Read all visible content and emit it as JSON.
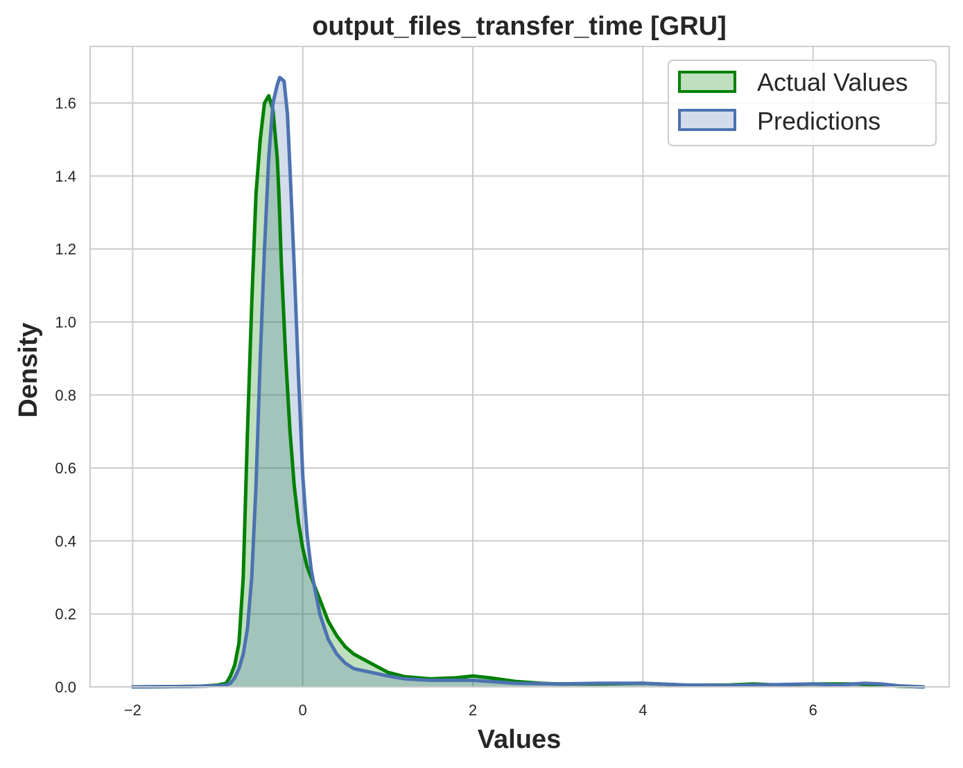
{
  "chart_data": {
    "type": "area",
    "title": "output_files_transfer_time [GRU]",
    "xlabel": "Values",
    "ylabel": "Density",
    "xlim": [
      -2.5,
      7.6
    ],
    "ylim": [
      0,
      1.755
    ],
    "xticks": [
      -2,
      0,
      2,
      4,
      6
    ],
    "xtick_labels": [
      "−2",
      "0",
      "2",
      "4",
      "6"
    ],
    "yticks": [
      0.0,
      0.2,
      0.4,
      0.6,
      0.8,
      1.0,
      1.2,
      1.4,
      1.6
    ],
    "ytick_labels": [
      "0.0",
      "0.2",
      "0.4",
      "0.6",
      "0.8",
      "1.0",
      "1.2",
      "1.4",
      "1.6"
    ],
    "grid": true,
    "legend_position": "top-right",
    "series": [
      {
        "name": "Actual Values",
        "color": "#008000",
        "fill_color": "#008000",
        "x": [
          -2.0,
          -1.5,
          -1.2,
          -1.0,
          -0.9,
          -0.85,
          -0.8,
          -0.75,
          -0.7,
          -0.65,
          -0.6,
          -0.55,
          -0.5,
          -0.45,
          -0.4,
          -0.35,
          -0.3,
          -0.28,
          -0.25,
          -0.2,
          -0.15,
          -0.1,
          -0.05,
          0.0,
          0.05,
          0.1,
          0.15,
          0.2,
          0.3,
          0.4,
          0.5,
          0.6,
          0.8,
          1.0,
          1.2,
          1.5,
          1.8,
          2.0,
          2.2,
          2.5,
          2.8,
          3.0,
          3.5,
          4.0,
          4.5,
          5.0,
          5.3,
          5.6,
          6.0,
          6.5,
          6.8,
          7.0,
          7.3
        ],
        "y": [
          0.0,
          0.001,
          0.002,
          0.005,
          0.01,
          0.03,
          0.06,
          0.12,
          0.3,
          0.7,
          1.05,
          1.35,
          1.5,
          1.6,
          1.62,
          1.58,
          1.45,
          1.35,
          1.15,
          0.9,
          0.7,
          0.55,
          0.45,
          0.38,
          0.33,
          0.3,
          0.27,
          0.24,
          0.18,
          0.14,
          0.11,
          0.09,
          0.065,
          0.04,
          0.028,
          0.022,
          0.025,
          0.03,
          0.025,
          0.015,
          0.01,
          0.008,
          0.008,
          0.01,
          0.005,
          0.005,
          0.008,
          0.005,
          0.008,
          0.008,
          0.005,
          0.002,
          0.0
        ]
      },
      {
        "name": "Predictions",
        "color": "#4c72b0",
        "fill_color": "#4c72b0",
        "x": [
          -2.0,
          -1.5,
          -1.2,
          -1.0,
          -0.9,
          -0.85,
          -0.8,
          -0.75,
          -0.7,
          -0.65,
          -0.6,
          -0.55,
          -0.5,
          -0.45,
          -0.4,
          -0.35,
          -0.3,
          -0.27,
          -0.22,
          -0.18,
          -0.15,
          -0.1,
          -0.05,
          0.0,
          0.05,
          0.1,
          0.15,
          0.2,
          0.3,
          0.4,
          0.5,
          0.6,
          0.8,
          1.0,
          1.2,
          1.5,
          1.8,
          2.0,
          2.5,
          3.0,
          3.5,
          4.0,
          4.5,
          5.0,
          5.5,
          6.0,
          6.3,
          6.6,
          6.8,
          7.0,
          7.3
        ],
        "y": [
          0.0,
          0.001,
          0.002,
          0.003,
          0.005,
          0.01,
          0.025,
          0.05,
          0.09,
          0.16,
          0.3,
          0.55,
          0.9,
          1.2,
          1.45,
          1.6,
          1.65,
          1.67,
          1.66,
          1.57,
          1.42,
          1.15,
          0.85,
          0.58,
          0.42,
          0.32,
          0.26,
          0.2,
          0.13,
          0.09,
          0.065,
          0.05,
          0.04,
          0.03,
          0.022,
          0.018,
          0.018,
          0.018,
          0.01,
          0.008,
          0.01,
          0.01,
          0.005,
          0.004,
          0.006,
          0.008,
          0.005,
          0.01,
          0.008,
          0.003,
          0.0
        ]
      }
    ]
  }
}
